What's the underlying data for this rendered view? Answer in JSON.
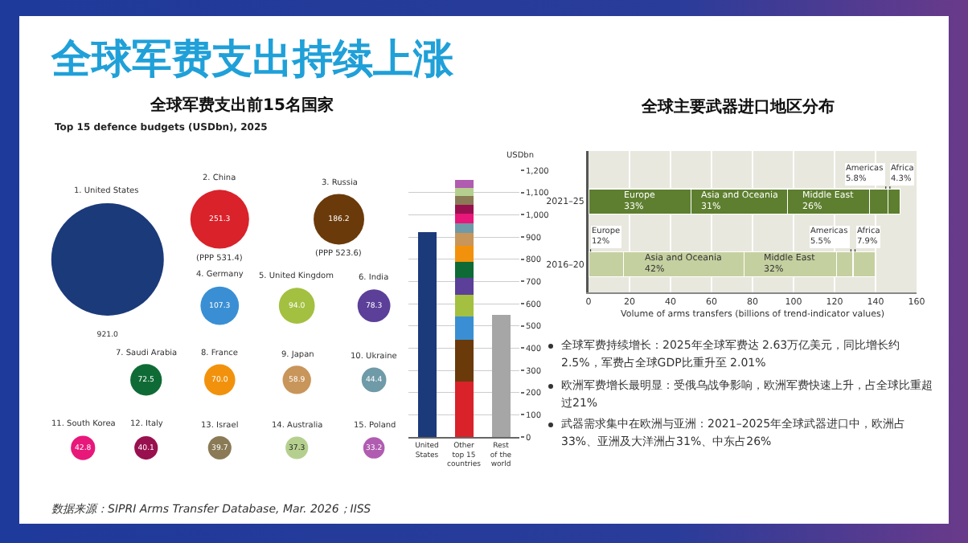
{
  "chart_data": [
    {
      "type": "other",
      "title": "全球军费支出持续上涨",
      "annotations": [
        "数据来源：SIPRI Arms Transfer Database, Mar. 2026；IISS"
      ]
    },
    {
      "type": "other",
      "title": "全球军费支出前15名国家",
      "subtitle": "Top 15 defence budgets (USDbn), 2025",
      "categories": [
        "1. United States",
        "2. China",
        "3. Russia",
        "4. Germany",
        "5. United Kingdom",
        "6. India",
        "7. Saudi Arabia",
        "8. France",
        "9. Japan",
        "10. Ukraine",
        "11. South Korea",
        "12. Italy",
        "13. Israel",
        "14. Australia",
        "15. Poland"
      ],
      "values": [
        921.0,
        251.3,
        186.2,
        107.3,
        94.0,
        78.3,
        72.5,
        70.0,
        58.9,
        44.4,
        42.8,
        40.1,
        39.7,
        37.3,
        33.2
      ],
      "value_labels": [
        "921.0",
        "251.3",
        "186.2",
        "107.3",
        "94.0",
        "78.3",
        "72.5",
        "70.0",
        "58.9",
        "44.4",
        "42.8",
        "40.1",
        "39.7",
        "37.3",
        "33.2"
      ],
      "colors": [
        "#1b3a7a",
        "#d9222a",
        "#6b3a0a",
        "#3a8fd4",
        "#a3c040",
        "#5b3f99",
        "#0f6b35",
        "#f2920c",
        "#c8955a",
        "#6f9aa8",
        "#e8177a",
        "#99104f",
        "#8a7a55",
        "#b5d08e",
        "#b05cb0"
      ],
      "annotations": [
        {
          "text": "(PPP 531.4)",
          "x": "2. China"
        },
        {
          "text": "(PPP 523.6)",
          "x": "3. Russia"
        }
      ]
    },
    {
      "type": "bar",
      "stacked": true,
      "ylabel": "USDbn",
      "categories": [
        "United States",
        "Other top 15 countries",
        "Rest of the world"
      ],
      "series": [
        {
          "color": "#1b3a7a",
          "values": [
            921,
            null,
            null
          ]
        },
        {
          "color": "#d9222a",
          "values": [
            null,
            251,
            null
          ]
        },
        {
          "color": "#6b3a0a",
          "values": [
            null,
            186,
            null
          ]
        },
        {
          "color": "#3a8fd4",
          "values": [
            null,
            107,
            null
          ]
        },
        {
          "color": "#a3c040",
          "values": [
            null,
            94,
            null
          ]
        },
        {
          "color": "#5b3f99",
          "values": [
            null,
            78,
            null
          ]
        },
        {
          "color": "#0f6b35",
          "values": [
            null,
            73,
            null
          ]
        },
        {
          "color": "#f2920c",
          "values": [
            null,
            70,
            null
          ]
        },
        {
          "color": "#c8955a",
          "values": [
            null,
            59,
            null
          ]
        },
        {
          "color": "#6f9aa8",
          "values": [
            null,
            44,
            null
          ]
        },
        {
          "color": "#e8177a",
          "values": [
            null,
            43,
            null
          ]
        },
        {
          "color": "#99104f",
          "values": [
            null,
            40,
            null
          ]
        },
        {
          "color": "#8a7a55",
          "values": [
            null,
            40,
            null
          ]
        },
        {
          "color": "#b5d08e",
          "values": [
            null,
            37,
            null
          ]
        },
        {
          "color": "#b05cb0",
          "values": [
            null,
            33,
            null
          ]
        },
        {
          "color": "#a6a6a6",
          "values": [
            null,
            null,
            550
          ]
        }
      ],
      "ylim": [
        0,
        1200
      ],
      "yticks": [
        0,
        100,
        200,
        300,
        400,
        500,
        600,
        700,
        800,
        900,
        {
          "value": 1000,
          "label": "1,000"
        },
        {
          "value": 1100,
          "label": "1,100"
        },
        {
          "value": 1200,
          "label": "1,200"
        }
      ],
      "grid": "y"
    },
    {
      "type": "bar",
      "orientation": "horizontal",
      "stacked": true,
      "title": "全球主要武器进口地区分布",
      "xlabel": "Volume of arms transfers (billions of trend-indicator values)",
      "categories": [
        "2021–25",
        "2016–20"
      ],
      "series": [
        {
          "name": "Europe",
          "colors": [
            "#5e7f2f",
            "#c5d0a0"
          ],
          "values": [
            50,
            17
          ]
        },
        {
          "name": "Asia and Oceania",
          "colors": [
            "#5e7f2f",
            "#c5d0a0"
          ],
          "values": [
            47,
            59
          ]
        },
        {
          "name": "Middle East",
          "colors": [
            "#5e7f2f",
            "#c5d0a0"
          ],
          "values": [
            40,
            45
          ]
        },
        {
          "name": "Americas",
          "colors": [
            "#5e7f2f",
            "#c5d0a0"
          ],
          "values": [
            9,
            8
          ]
        },
        {
          "name": "Africa",
          "colors": [
            "#5e7f2f",
            "#c5d0a0"
          ],
          "values": [
            6,
            11
          ]
        }
      ],
      "annotations": [
        "33%",
        "31%",
        "26%",
        "5.8%",
        "4.3%",
        "12%",
        "42%",
        "32%",
        "5.5%",
        "7.9%"
      ],
      "xlim": [
        0,
        160
      ],
      "xticks": [
        0,
        20,
        40,
        60,
        80,
        100,
        120,
        140,
        160
      ],
      "grid": "x"
    },
    {
      "type": "other",
      "annotations": [
        "全球军费持续增长：2025年全球军费达 2.63万亿美元，同比增长约 2.5%，军费占全球GDP比重升至 2.01%",
        "欧洲军费增长最明显：受俄乌战争影响，欧洲军费快速上升，占全球比重超过21%",
        "武器需求集中在欧洲与亚洲：2021–2025年全球武器进口中，欧洲占33%、亚洲及大洋洲占31%、中东占26%"
      ]
    }
  ]
}
